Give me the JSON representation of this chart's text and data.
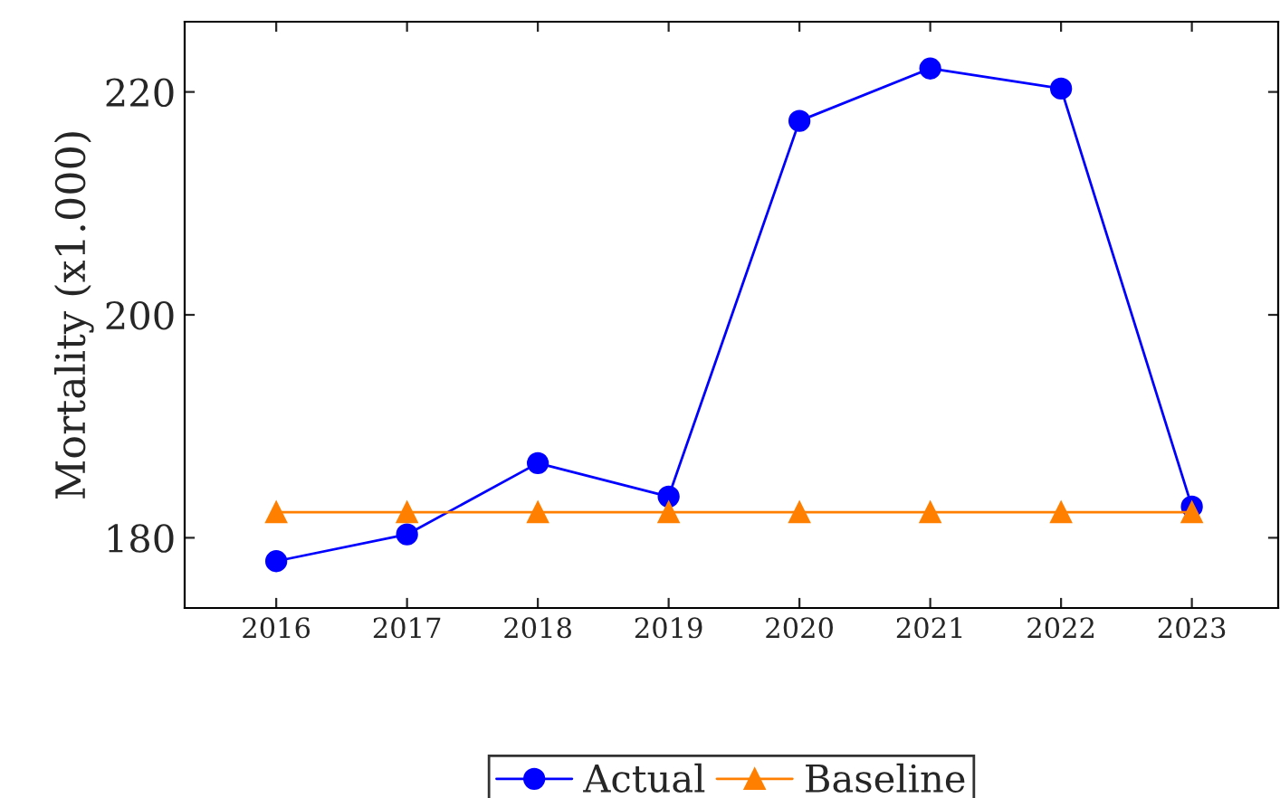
{
  "chart_data": {
    "type": "line",
    "ylabel": "Mortality (x1.000)",
    "x": [
      2016,
      2017,
      2018,
      2019,
      2020,
      2021,
      2022,
      2023
    ],
    "series": [
      {
        "name": "Actual",
        "color": "#0000ff",
        "marker": "circle",
        "values": [
          177.9,
          180.3,
          186.7,
          183.7,
          217.4,
          222.1,
          220.3,
          182.8
        ]
      },
      {
        "name": "Baseline",
        "color": "#ff8000",
        "marker": "triangle",
        "values": [
          182.3,
          182.3,
          182.3,
          182.3,
          182.3,
          182.3,
          182.3,
          182.3
        ]
      }
    ],
    "xlim": [
      2015.3,
      2023.66
    ],
    "xticks": [
      {
        "value": 2016,
        "label": "2016"
      },
      {
        "value": 2017,
        "label": "2017"
      },
      {
        "value": 2018,
        "label": "2018"
      },
      {
        "value": 2019,
        "label": "2019"
      },
      {
        "value": 2020,
        "label": "2020"
      },
      {
        "value": 2021,
        "label": "2021"
      },
      {
        "value": 2022,
        "label": "2022"
      },
      {
        "value": 2023,
        "label": "2023"
      }
    ],
    "ylim": [
      173.7,
      226.3
    ],
    "yticks": [
      180,
      200,
      220
    ],
    "grid": false,
    "legend": "bottom",
    "line_style": "solid"
  }
}
